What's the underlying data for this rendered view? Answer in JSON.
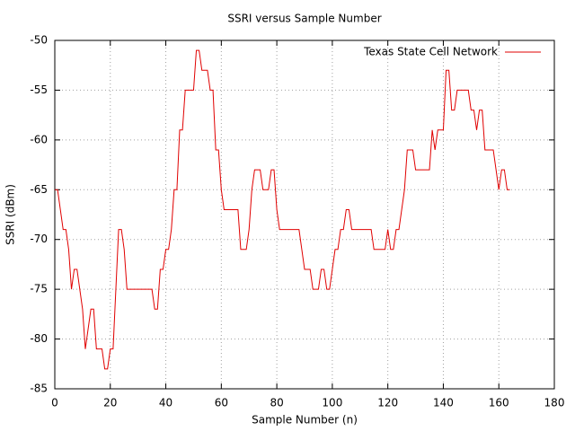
{
  "chart_data": {
    "type": "line",
    "title": "SSRI versus Sample Number",
    "x_label": "Sample Number (n)",
    "y_label": "SSRI (dBm)",
    "x": [
      0,
      1,
      2,
      3,
      4,
      5,
      6,
      7,
      8,
      9,
      10,
      11,
      12,
      13,
      14,
      15,
      16,
      17,
      18,
      19,
      20,
      21,
      22,
      23,
      24,
      25,
      26,
      27,
      28,
      29,
      30,
      31,
      32,
      33,
      34,
      35,
      36,
      37,
      38,
      39,
      40,
      41,
      42,
      43,
      44,
      45,
      46,
      47,
      48,
      49,
      50,
      51,
      52,
      53,
      54,
      55,
      56,
      57,
      58,
      59,
      60,
      61,
      62,
      63,
      64,
      65,
      66,
      67,
      68,
      69,
      70,
      71,
      72,
      73,
      74,
      75,
      76,
      77,
      78,
      79,
      80,
      81,
      82,
      83,
      84,
      85,
      86,
      87,
      88,
      89,
      90,
      91,
      92,
      93,
      94,
      95,
      96,
      97,
      98,
      99,
      100,
      101,
      102,
      103,
      104,
      105,
      106,
      107,
      108,
      109,
      110,
      111,
      112,
      113,
      114,
      115,
      116,
      117,
      118,
      119,
      120,
      121,
      122,
      123,
      124,
      125,
      126,
      127,
      128,
      129,
      130,
      131,
      132,
      133,
      134,
      135,
      136,
      137,
      138,
      139,
      140,
      141,
      142,
      143,
      144,
      145,
      146,
      147,
      148,
      149,
      150,
      151,
      152,
      153,
      154,
      155,
      156,
      157,
      158,
      159,
      160,
      161,
      162,
      163,
      164
    ],
    "series": [
      {
        "name": "Texas State Cell Network",
        "color": "#e00000",
        "values": [
          -65,
          -65,
          -67,
          -69,
          -69,
          -71,
          -75,
          -73,
          -73,
          -75,
          -77,
          -81,
          -79,
          -77,
          -77,
          -81,
          -81,
          -81,
          -83,
          -83,
          -81,
          -81,
          -75,
          -69,
          -69,
          -71,
          -75,
          -75,
          -75,
          -75,
          -75,
          -75,
          -75,
          -75,
          -75,
          -75,
          -77,
          -77,
          -73,
          -73,
          -71,
          -71,
          -69,
          -65,
          -65,
          -59,
          -59,
          -55,
          -55,
          -55,
          -55,
          -51,
          -51,
          -53,
          -53,
          -53,
          -55,
          -55,
          -61,
          -61,
          -65,
          -67,
          -67,
          -67,
          -67,
          -67,
          -67,
          -71,
          -71,
          -71,
          -69,
          -65,
          -63,
          -63,
          -63,
          -65,
          -65,
          -65,
          -63,
          -63,
          -67,
          -69,
          -69,
          -69,
          -69,
          -69,
          -69,
          -69,
          -69,
          -71,
          -73,
          -73,
          -73,
          -75,
          -75,
          -75,
          -73,
          -73,
          -75,
          -75,
          -73,
          -71,
          -71,
          -69,
          -69,
          -67,
          -67,
          -69,
          -69,
          -69,
          -69,
          -69,
          -69,
          -69,
          -69,
          -71,
          -71,
          -71,
          -71,
          -71,
          -69,
          -71,
          -71,
          -69,
          -69,
          -67,
          -65,
          -61,
          -61,
          -61,
          -63,
          -63,
          -63,
          -63,
          -63,
          -63,
          -59,
          -61,
          -59,
          -59,
          -59,
          -53,
          -53,
          -57,
          -57,
          -55,
          -55,
          -55,
          -55,
          -55,
          -57,
          -57,
          -59,
          -57,
          -57,
          -61,
          -61,
          -61,
          -61,
          -63,
          -65,
          -63,
          -63,
          -65,
          -65
        ]
      }
    ],
    "xlim": [
      0,
      180
    ],
    "xticks": [
      0,
      20,
      40,
      60,
      80,
      100,
      120,
      140,
      160,
      180
    ],
    "ylim": [
      -85,
      -50
    ],
    "yticks": [
      -85,
      -80,
      -75,
      -70,
      -65,
      -60,
      -55,
      -50
    ],
    "grid": true,
    "legend": "top-right"
  }
}
